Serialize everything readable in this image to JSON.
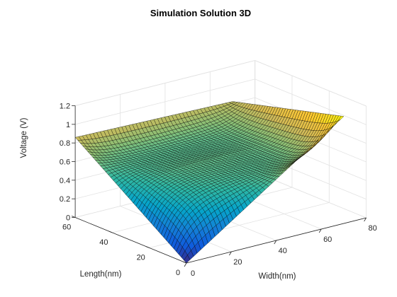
{
  "chart_data": {
    "type": "surface",
    "title": "Simulation Solution 3D",
    "xlabel": "Width(nm)",
    "ylabel": "Length(nm)",
    "zlabel": "Voltage (V)",
    "xlim": [
      0,
      80
    ],
    "ylim": [
      0,
      60
    ],
    "zlim": [
      0,
      1.2
    ],
    "xticks": [
      "0",
      "20",
      "40",
      "60",
      "80"
    ],
    "yticks": [
      "0",
      "20",
      "40",
      "60"
    ],
    "zticks": [
      "0",
      "0.2",
      "0.4",
      "0.6",
      "0.8",
      "1",
      "1.2"
    ],
    "grid": true,
    "colormap": "parula",
    "colormap_colors": [
      "#352a87",
      "#0f5cdd",
      "#1481d6",
      "#06a4ca",
      "#2eb7a4",
      "#87bf77",
      "#d1bb59",
      "#fec832",
      "#f9fb0e"
    ],
    "edge_color": "#000000",
    "x_extent": [
      0,
      70
    ],
    "y_extent": [
      0,
      60
    ],
    "peak_values": {
      "at_y0_x0": 0.0,
      "at_y0_x70": 1.15,
      "at_y60_x0": 0.86,
      "at_y60_x70": 0.82,
      "center_minimum": 0.6
    }
  }
}
